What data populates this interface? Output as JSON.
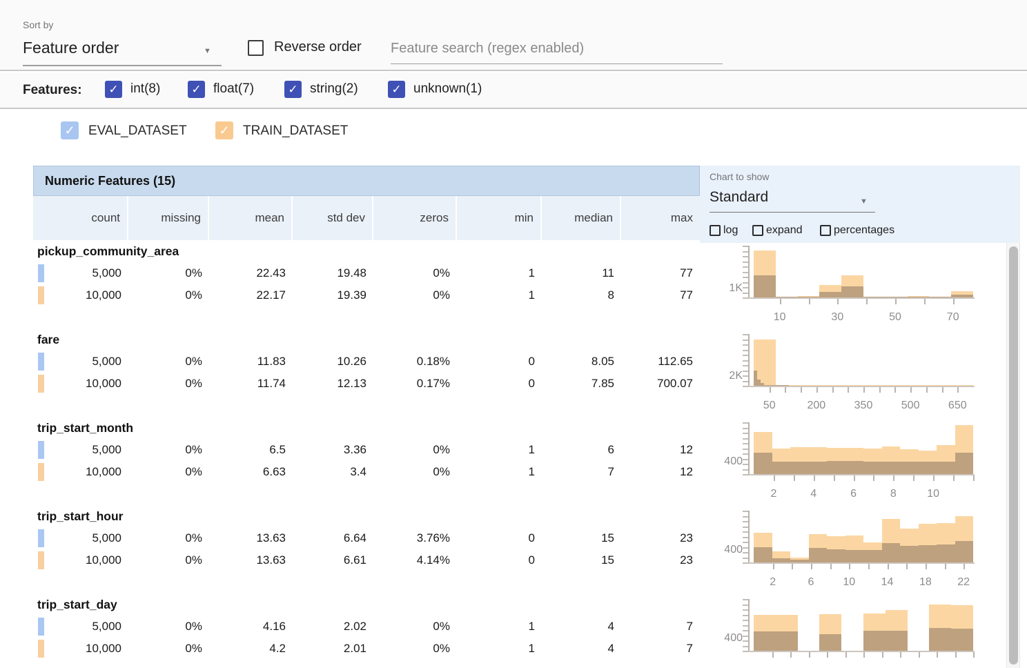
{
  "toolbar": {
    "sort_by_label": "Sort by",
    "sort_value": "Feature order",
    "reverse_label": "Reverse order",
    "search_placeholder": "Feature search (regex enabled)"
  },
  "filters": {
    "label": "Features:",
    "items": [
      {
        "label": "int(8)",
        "checked": true
      },
      {
        "label": "float(7)",
        "checked": true
      },
      {
        "label": "string(2)",
        "checked": true
      },
      {
        "label": "unknown(1)",
        "checked": true
      }
    ],
    "checkbox_color": "#3f51b5"
  },
  "datasets": [
    {
      "name": "EVAL_DATASET",
      "checkbox_color": "#a9c6f2",
      "chip_color": "#aac7f2"
    },
    {
      "name": "TRAIN_DATASET",
      "checkbox_color": "#f9ca90",
      "chip_color": "#f8cf9f"
    }
  ],
  "table": {
    "title": "Numeric Features (15)",
    "columns": [
      "count",
      "missing",
      "mean",
      "std dev",
      "zeros",
      "min",
      "median",
      "max"
    ],
    "features": [
      {
        "name": "pickup_community_area",
        "rows": [
          {
            "dataset": "EVAL_DATASET",
            "values": [
              "5,000",
              "0%",
              "22.43",
              "19.48",
              "0%",
              "1",
              "11",
              "77"
            ]
          },
          {
            "dataset": "TRAIN_DATASET",
            "values": [
              "10,000",
              "0%",
              "22.17",
              "19.39",
              "0%",
              "1",
              "8",
              "77"
            ]
          }
        ]
      },
      {
        "name": "fare",
        "rows": [
          {
            "dataset": "EVAL_DATASET",
            "values": [
              "5,000",
              "0%",
              "11.83",
              "10.26",
              "0.18%",
              "0",
              "8.05",
              "112.65"
            ]
          },
          {
            "dataset": "TRAIN_DATASET",
            "values": [
              "10,000",
              "0%",
              "11.74",
              "12.13",
              "0.17%",
              "0",
              "7.85",
              "700.07"
            ]
          }
        ]
      },
      {
        "name": "trip_start_month",
        "rows": [
          {
            "dataset": "EVAL_DATASET",
            "values": [
              "5,000",
              "0%",
              "6.5",
              "3.36",
              "0%",
              "1",
              "6",
              "12"
            ]
          },
          {
            "dataset": "TRAIN_DATASET",
            "values": [
              "10,000",
              "0%",
              "6.63",
              "3.4",
              "0%",
              "1",
              "7",
              "12"
            ]
          }
        ]
      },
      {
        "name": "trip_start_hour",
        "rows": [
          {
            "dataset": "EVAL_DATASET",
            "values": [
              "5,000",
              "0%",
              "13.63",
              "6.64",
              "3.76%",
              "0",
              "15",
              "23"
            ]
          },
          {
            "dataset": "TRAIN_DATASET",
            "values": [
              "10,000",
              "0%",
              "13.63",
              "6.61",
              "4.14%",
              "0",
              "15",
              "23"
            ]
          }
        ]
      },
      {
        "name": "trip_start_day",
        "rows": [
          {
            "dataset": "EVAL_DATASET",
            "values": [
              "5,000",
              "0%",
              "4.16",
              "2.02",
              "0%",
              "1",
              "4",
              "7"
            ]
          },
          {
            "dataset": "TRAIN_DATASET",
            "values": [
              "10,000",
              "0%",
              "4.2",
              "2.01",
              "0%",
              "1",
              "4",
              "7"
            ]
          }
        ]
      }
    ]
  },
  "chart_controls": {
    "label": "Chart to show",
    "selected": "Standard",
    "options": [
      {
        "label": "log",
        "checked": false
      },
      {
        "label": "expand",
        "checked": false
      },
      {
        "label": "percentages",
        "checked": false
      }
    ]
  },
  "colors": {
    "train_bar": "#fbd6a3",
    "eval_overlay": "rgba(100,82,72,0.40)",
    "accent_indigo": "#3f51b5",
    "table_title_bg": "#c7daee",
    "table_header_bg": "#eaf1f9",
    "chart_header_bg": "#e9f1fb"
  },
  "chart_data": [
    {
      "feature": "pickup_community_area",
      "type": "bar",
      "y_label": "1K",
      "y_label_value": 1000,
      "y_max": 5770,
      "x_range": [
        1,
        77
      ],
      "x_tick_values": [
        10,
        20,
        30,
        40,
        50,
        60,
        70
      ],
      "x_tick_labels": [
        "10",
        "30",
        "50",
        "70"
      ],
      "x_label_values": [
        10,
        30,
        50,
        70
      ],
      "series": [
        {
          "name": "TRAIN_DATASET",
          "x_span": [
            0,
            1
          ],
          "values": [
            5210,
            80,
            150,
            1360,
            2440,
            55,
            55,
            150,
            25,
            715
          ]
        },
        {
          "name": "EVAL_DATASET",
          "x_span": [
            0,
            1
          ],
          "values": [
            2490,
            40,
            80,
            640,
            1210,
            25,
            25,
            80,
            10,
            285
          ]
        }
      ]
    },
    {
      "feature": "fare",
      "type": "bar",
      "y_label": "2K",
      "y_label_value": 2000,
      "y_max": 10700,
      "x_range": [
        0,
        700
      ],
      "x_tick_values": [
        50,
        100,
        150,
        200,
        250,
        300,
        350,
        400,
        450,
        500,
        550,
        600,
        650
      ],
      "x_tick_labels": [
        "50",
        "200",
        "350",
        "500",
        "650"
      ],
      "x_label_values": [
        50,
        200,
        350,
        500,
        650
      ],
      "series": [
        {
          "name": "TRAIN_DATASET",
          "x_span": [
            0,
            1
          ],
          "values": [
            9540,
            120,
            40,
            20,
            15,
            10,
            8,
            5,
            5,
            30
          ]
        },
        {
          "name": "EVAL_DATASET",
          "x_span": [
            0,
            0.161
          ],
          "values": [
            3100,
            1330,
            530,
            20,
            10,
            5,
            3,
            2,
            1,
            1
          ]
        }
      ]
    },
    {
      "feature": "trip_start_month",
      "type": "bar",
      "y_label": "400",
      "y_label_value": 400,
      "y_max": 1665,
      "x_range": [
        1,
        12
      ],
      "x_tick_values": [
        2,
        3,
        4,
        5,
        6,
        7,
        8,
        9,
        10,
        11,
        12
      ],
      "x_tick_labels": [
        "2",
        "4",
        "6",
        "8",
        "10"
      ],
      "x_label_values": [
        2,
        4,
        6,
        8,
        10
      ],
      "series": [
        {
          "name": "TRAIN_DATASET",
          "x_span": [
            0,
            1
          ],
          "values": [
            1350,
            830,
            870,
            860,
            850,
            840,
            830,
            880,
            790,
            760,
            930,
            1580
          ]
        },
        {
          "name": "EVAL_DATASET",
          "x_span": [
            0,
            1
          ],
          "values": [
            690,
            400,
            400,
            410,
            420,
            430,
            410,
            400,
            390,
            390,
            400,
            690
          ]
        }
      ]
    },
    {
      "feature": "trip_start_hour",
      "type": "bar",
      "y_label": "400",
      "y_label_value": 400,
      "y_max": 1665,
      "x_range": [
        0,
        23
      ],
      "x_tick_values": [
        2,
        4,
        6,
        8,
        10,
        12,
        14,
        16,
        18,
        20,
        22
      ],
      "x_tick_labels": [
        "2",
        "6",
        "10",
        "14",
        "18",
        "22"
      ],
      "x_label_values": [
        2,
        6,
        10,
        14,
        18,
        22
      ],
      "series": [
        {
          "name": "TRAIN_DATASET",
          "x_span": [
            0,
            1
          ],
          "values": [
            955,
            350,
            155,
            910,
            840,
            875,
            650,
            1390,
            1080,
            1245,
            1265,
            1480
          ]
        },
        {
          "name": "EVAL_DATASET",
          "x_span": [
            0,
            1
          ],
          "values": [
            490,
            130,
            90,
            465,
            420,
            400,
            400,
            620,
            535,
            555,
            575,
            690
          ]
        }
      ]
    },
    {
      "feature": "trip_start_day",
      "type": "bar",
      "y_label": "400",
      "y_label_value": 400,
      "y_max": 1665,
      "x_range": [
        1,
        7
      ],
      "x_tick_values": [
        1.5,
        2,
        2.5,
        3,
        3.5,
        4,
        4.5,
        5,
        5.5,
        6,
        6.5,
        7
      ],
      "x_tick_labels": [],
      "x_label_values": [],
      "series": [
        {
          "name": "TRAIN_DATASET",
          "x_span": [
            0,
            1
          ],
          "values": [
            1150,
            1150,
            0,
            1175,
            0,
            1205,
            1310,
            0,
            1480,
            1465
          ]
        },
        {
          "name": "EVAL_DATASET",
          "x_span": [
            0,
            1
          ],
          "values": [
            630,
            615,
            0,
            540,
            0,
            635,
            650,
            0,
            740,
            705
          ]
        }
      ]
    }
  ]
}
